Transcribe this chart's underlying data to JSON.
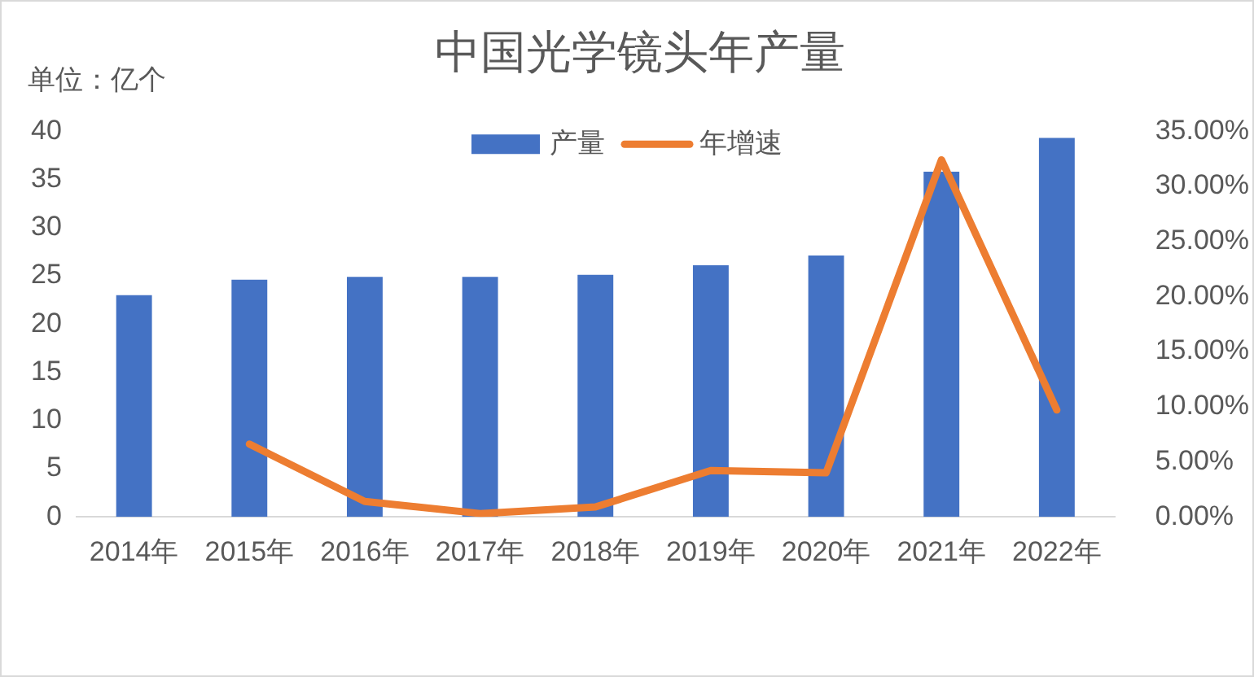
{
  "chart_data": {
    "type": "bar",
    "title": "中国光学镜头年产量",
    "ylabel": "单位：亿个",
    "categories": [
      "2014年",
      "2015年",
      "2016年",
      "2017年",
      "2018年",
      "2019年",
      "2020年",
      "2021年",
      "2022年"
    ],
    "series": [
      {
        "name": "产量",
        "color": "#4472c4",
        "values": [
          23.0,
          24.6,
          24.9,
          24.9,
          25.1,
          26.1,
          27.1,
          35.8,
          39.3
        ]
      },
      {
        "name": "年增速",
        "type": "line",
        "axis": "y2",
        "color": "#ed7d31",
        "values": [
          null,
          6.6,
          1.4,
          0.3,
          0.9,
          4.2,
          4.0,
          32.4,
          9.7
        ]
      }
    ],
    "ylim": [
      0,
      40
    ],
    "yticks": [
      0,
      5,
      10,
      15,
      20,
      25,
      30,
      35,
      40
    ],
    "y2lim": [
      0,
      35
    ],
    "y2ticks": [
      {
        "value": 0,
        "label": "0.00%"
      },
      {
        "value": 5,
        "label": "5.00%"
      },
      {
        "value": 10,
        "label": "10.00%"
      },
      {
        "value": 15,
        "label": "15.00%"
      },
      {
        "value": 20,
        "label": "20.00%"
      },
      {
        "value": 25,
        "label": "25.00%"
      },
      {
        "value": 30,
        "label": "30.00%"
      },
      {
        "value": 35,
        "label": "35.00%"
      }
    ],
    "grid": false,
    "legend": "top",
    "marker": "none",
    "line_style": "solid"
  }
}
